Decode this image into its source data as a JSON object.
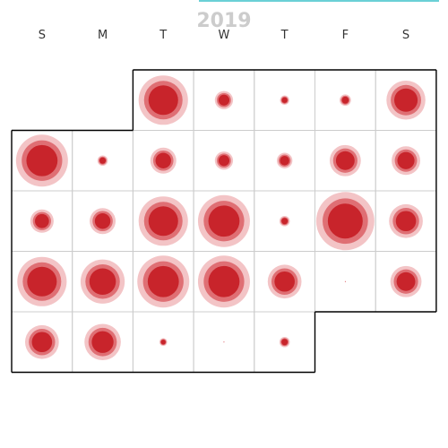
{
  "chart_data": {
    "type": "calendar-bubble",
    "title": "2019",
    "weekdays": [
      "S",
      "M",
      "T",
      "W",
      "T",
      "F",
      "S"
    ],
    "colors": {
      "outer": "#f3c4c6",
      "middle": "#df6f74",
      "inner": "#c8242b",
      "accent": "#38c0c8"
    },
    "weeks": [
      [
        null,
        null,
        0.95,
        0.35,
        0.18,
        0.22,
        0.75
      ],
      [
        1.0,
        0.2,
        0.5,
        0.35,
        0.3,
        0.6,
        0.55
      ],
      [
        0.45,
        0.5,
        0.95,
        1.0,
        0.2,
        1.12,
        0.65
      ],
      [
        0.95,
        0.85,
        1.0,
        1.0,
        0.65,
        0.02,
        0.6
      ],
      [
        0.65,
        0.7,
        0.15,
        0.02,
        0.2,
        null,
        null
      ]
    ]
  }
}
